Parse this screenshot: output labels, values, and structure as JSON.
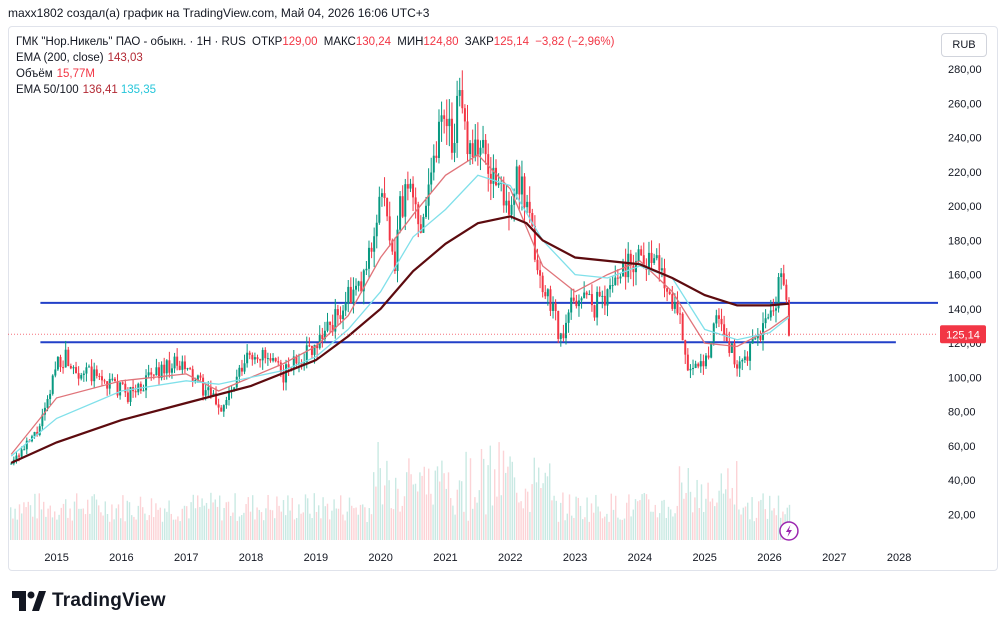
{
  "caption": "maxx1802 создал(а) график на TradingView.com, Май 04, 2026 16:06 UTC+3",
  "currency": "RUB",
  "legend": {
    "symbol": "ГМК \"Нор.Никель\" ПАО - обыкн. · 1H · RUS",
    "open_label": "ОТКР",
    "open": "129,00",
    "high_label": "МАКС",
    "high": "130,24",
    "low_label": "МИН",
    "low": "124,80",
    "close_label": "ЗАКР",
    "close": "125,14",
    "change": "−3,82 (−2,96%)",
    "ema200_label": "EMA (200, close)",
    "ema200": "143,03",
    "volume_label": "Объём",
    "volume": "15,77M",
    "ema50_100_label": "EMA 50/100",
    "ema50": "136,41",
    "ema100": "135,35"
  },
  "brand": {
    "name": "TradingView"
  },
  "colors": {
    "candle_up": "#089981",
    "candle_down": "#f23645",
    "ema50": "#e0747a",
    "ema100": "#80e0ea",
    "ema200": "#5d0b0f",
    "hline": "#2240c8",
    "price_label": "#f23645"
  },
  "chart_data": {
    "type": "line",
    "title": "ГМК \"Нор.Никель\" ПАО - обыкн.",
    "xlabel": "",
    "ylabel": "",
    "x_ticks": [
      "2015",
      "2016",
      "2017",
      "2018",
      "2019",
      "2020",
      "2021",
      "2022",
      "2023",
      "2024",
      "2025",
      "2026",
      "2027",
      "2028"
    ],
    "y_ticks": [
      "20,00",
      "40,00",
      "60,00",
      "80,00",
      "100,00",
      "120,00",
      "140,00",
      "160,00",
      "180,00",
      "200,00",
      "220,00",
      "240,00",
      "260,00",
      "280,00"
    ],
    "ylim": [
      5,
      290
    ],
    "xlim": [
      2014.25,
      2028.6
    ],
    "last_price": 125.14,
    "last_price_label": "125,14",
    "horizontal_lines": [
      {
        "y": 143.5,
        "x_start": 2014.75,
        "x_end": 2028.6
      },
      {
        "y": 120.5,
        "x_start": 2014.75,
        "x_end": 2027.95
      }
    ],
    "series": [
      {
        "name": "Price",
        "x": [
          2014.3,
          2014.5,
          2014.7,
          2014.85,
          2015.0,
          2015.15,
          2015.35,
          2015.6,
          2015.85,
          2016.1,
          2016.3,
          2016.5,
          2016.75,
          2017.0,
          2017.2,
          2017.4,
          2017.55,
          2017.75,
          2017.95,
          2018.1,
          2018.3,
          2018.5,
          2018.7,
          2018.9,
          2019.1,
          2019.3,
          2019.5,
          2019.7,
          2019.85,
          2020.0,
          2020.1,
          2020.2,
          2020.3,
          2020.45,
          2020.6,
          2020.75,
          2020.9,
          2021.0,
          2021.1,
          2021.2,
          2021.35,
          2021.5,
          2021.65,
          2021.8,
          2021.95,
          2022.1,
          2022.2,
          2022.35,
          2022.5,
          2022.65,
          2022.8,
          2022.95,
          2023.1,
          2023.3,
          2023.5,
          2023.7,
          2023.85,
          2024.0,
          2024.15,
          2024.3,
          2024.45,
          2024.6,
          2024.75,
          2024.9,
          2025.05,
          2025.2,
          2025.35,
          2025.5,
          2025.65,
          2025.8,
          2025.95,
          2026.1,
          2026.2,
          2026.3
        ],
        "y": [
          52,
          58,
          68,
          82,
          110,
          112,
          104,
          100,
          96,
          90,
          95,
          102,
          108,
          104,
          96,
          88,
          82,
          95,
          112,
          114,
          108,
          102,
          110,
          116,
          126,
          134,
          146,
          152,
          175,
          210,
          190,
          160,
          200,
          210,
          190,
          215,
          245,
          260,
          240,
          258,
          240,
          235,
          225,
          212,
          200,
          215,
          205,
          180,
          150,
          145,
          118,
          145,
          148,
          142,
          150,
          163,
          168,
          172,
          170,
          165,
          150,
          140,
          105,
          102,
          115,
          140,
          120,
          108,
          110,
          122,
          132,
          140,
          168,
          125
        ]
      },
      {
        "name": "EMA 50",
        "x": [
          2014.3,
          2015.0,
          2016.0,
          2017.0,
          2017.5,
          2018.5,
          2019.0,
          2019.5,
          2020.0,
          2020.5,
          2021.0,
          2021.5,
          2022.0,
          2022.5,
          2023.0,
          2023.5,
          2024.0,
          2024.5,
          2025.0,
          2025.5,
          2026.0,
          2026.3
        ],
        "y": [
          55,
          88,
          98,
          102,
          92,
          108,
          118,
          136,
          170,
          195,
          218,
          230,
          210,
          165,
          150,
          160,
          168,
          150,
          120,
          118,
          128,
          136
        ]
      },
      {
        "name": "EMA 100",
        "x": [
          2014.3,
          2015.0,
          2016.0,
          2017.0,
          2017.5,
          2018.5,
          2019.0,
          2019.5,
          2020.0,
          2020.5,
          2021.0,
          2021.5,
          2022.0,
          2022.5,
          2023.0,
          2023.5,
          2024.0,
          2024.5,
          2025.0,
          2025.5,
          2026.0,
          2026.3
        ],
        "y": [
          54,
          76,
          92,
          98,
          96,
          104,
          112,
          128,
          150,
          182,
          198,
          218,
          212,
          180,
          160,
          158,
          165,
          158,
          128,
          122,
          126,
          135
        ]
      },
      {
        "name": "EMA 200",
        "x": [
          2014.3,
          2015.0,
          2016.0,
          2017.0,
          2018.0,
          2019.0,
          2019.5,
          2020.0,
          2020.5,
          2021.0,
          2021.5,
          2022.0,
          2022.25,
          2022.5,
          2023.0,
          2023.5,
          2024.0,
          2024.5,
          2025.0,
          2025.5,
          2026.0,
          2026.3
        ],
        "y": [
          50,
          62,
          75,
          85,
          95,
          110,
          124,
          140,
          162,
          178,
          190,
          194,
          190,
          180,
          170,
          168,
          166,
          158,
          148,
          142,
          142,
          143
        ]
      }
    ]
  }
}
